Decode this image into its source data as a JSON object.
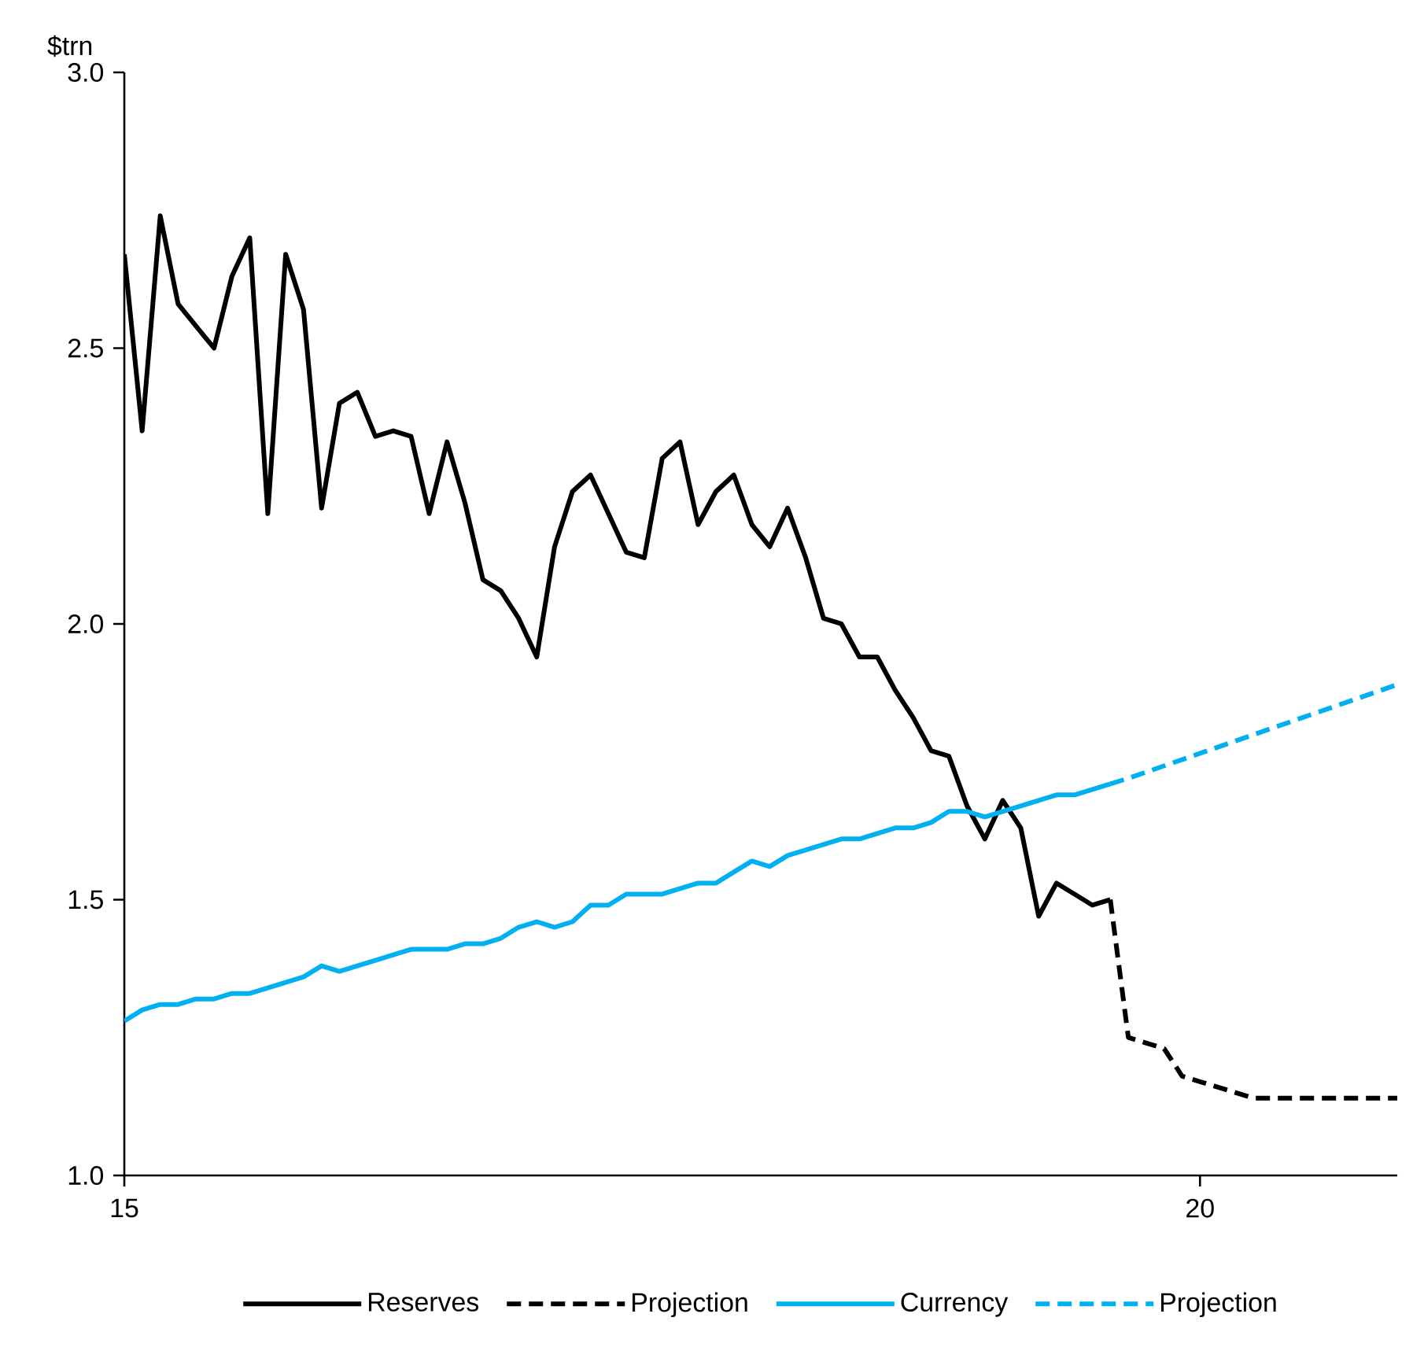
{
  "chart_data": {
    "type": "line",
    "ylabel": "$trn",
    "x": [
      15,
      15.083,
      15.167,
      15.25,
      15.333,
      15.417,
      15.5,
      15.583,
      15.667,
      15.75,
      15.833,
      15.917,
      16,
      16.083,
      16.167,
      16.25,
      16.333,
      16.417,
      16.5,
      16.583,
      16.667,
      16.75,
      16.833,
      16.917,
      17,
      17.083,
      17.167,
      17.25,
      17.333,
      17.417,
      17.5,
      17.583,
      17.667,
      17.75,
      17.833,
      17.917,
      18,
      18.083,
      18.167,
      18.25,
      18.333,
      18.417,
      18.5,
      18.583,
      18.667,
      18.75,
      18.833,
      18.917,
      19,
      19.083,
      19.167,
      19.25,
      19.333,
      19.417,
      19.5,
      19.583
    ],
    "series": [
      {
        "name": "Reserves",
        "color": "#000000",
        "values": [
          2.67,
          2.35,
          2.74,
          2.58,
          2.54,
          2.5,
          2.63,
          2.7,
          2.2,
          2.67,
          2.57,
          2.21,
          2.4,
          2.42,
          2.34,
          2.35,
          2.34,
          2.2,
          2.33,
          2.22,
          2.08,
          2.06,
          2.01,
          1.94,
          2.14,
          2.24,
          2.27,
          2.2,
          2.13,
          2.12,
          2.3,
          2.33,
          2.18,
          2.24,
          2.27,
          2.18,
          2.14,
          2.21,
          2.12,
          2.01,
          2.0,
          1.94,
          1.94,
          1.88,
          1.83,
          1.77,
          1.76,
          1.67,
          1.61,
          1.68,
          1.63,
          1.47,
          1.53,
          1.51,
          1.49,
          1.5
        ]
      },
      {
        "name": "Projection",
        "color": "#000000",
        "line_style": "dashed",
        "x": [
          19.583,
          19.667,
          19.833,
          19.917,
          20,
          20.167,
          20.25,
          20.917
        ],
        "values": [
          1.5,
          1.25,
          1.23,
          1.18,
          1.17,
          1.15,
          1.14,
          1.14
        ]
      },
      {
        "name": "Currency",
        "color": "#00b0f0",
        "values": [
          1.28,
          1.3,
          1.31,
          1.31,
          1.32,
          1.32,
          1.33,
          1.33,
          1.34,
          1.35,
          1.36,
          1.38,
          1.37,
          1.38,
          1.39,
          1.4,
          1.41,
          1.41,
          1.41,
          1.42,
          1.42,
          1.43,
          1.45,
          1.46,
          1.45,
          1.46,
          1.49,
          1.49,
          1.51,
          1.51,
          1.51,
          1.52,
          1.53,
          1.53,
          1.55,
          1.57,
          1.56,
          1.58,
          1.59,
          1.6,
          1.61,
          1.61,
          1.62,
          1.63,
          1.63,
          1.64,
          1.66,
          1.66,
          1.65,
          1.66,
          1.67,
          1.68,
          1.69,
          1.69,
          1.7,
          1.71
        ]
      },
      {
        "name": "Projection",
        "color": "#00b0f0",
        "line_style": "dashed",
        "x": [
          19.583,
          19.667,
          20.917
        ],
        "values": [
          1.71,
          1.72,
          1.89
        ]
      }
    ],
    "xlim": [
      15,
      20.917
    ],
    "xticks": [
      15,
      20
    ],
    "ylim": [
      1.0,
      3.0
    ],
    "yticks": [
      {
        "value": 1.0,
        "label": "1.0"
      },
      {
        "value": 1.5,
        "label": "1.5"
      },
      {
        "value": 2.0,
        "label": "2.0"
      },
      {
        "value": 2.5,
        "label": "2.5"
      },
      {
        "value": 3.0,
        "label": "3.0"
      }
    ],
    "legend": "bottom"
  }
}
